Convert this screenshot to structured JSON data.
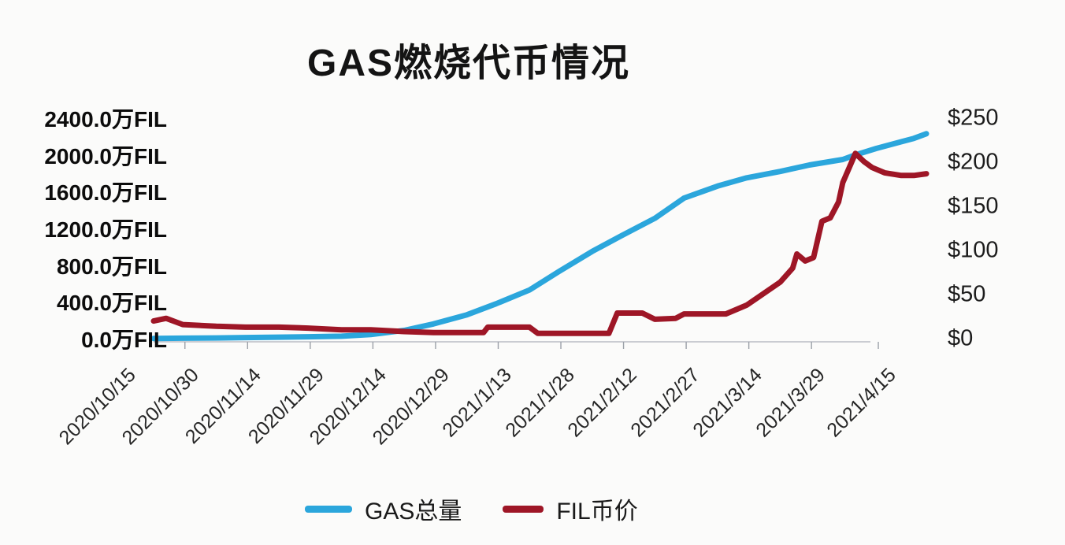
{
  "title": "GAS燃烧代币情况",
  "chart_data": {
    "type": "line",
    "title": "GAS燃烧代币情况",
    "grid": false,
    "legend_position": "bottom",
    "x_start": "2020/10/15",
    "x_end": "2021/4/18",
    "x_tick_labels": [
      "2020/10/15",
      "2020/10/30",
      "2020/11/14",
      "2020/11/29",
      "2020/12/14",
      "2020/12/29",
      "2021/1/13",
      "2021/1/28",
      "2021/2/12",
      "2021/2/27",
      "2021/3/14",
      "2021/3/29",
      "2021/4/15"
    ],
    "left_axis": {
      "unit": "万FIL",
      "min": 0,
      "max": 2400,
      "labels": [
        "2400.0万FIL",
        "2000.0万FIL",
        "1600.0万FIL",
        "1200.0万FIL",
        "800.0万FIL",
        "400.0万FIL",
        "0.0万FIL"
      ]
    },
    "right_axis": {
      "unit": "$",
      "min": 0,
      "max": 250,
      "labels": [
        "$250",
        "$200",
        "$150",
        "$100",
        "$50",
        "$0"
      ]
    },
    "series": [
      {
        "name": "GAS总量",
        "axis": "left",
        "unit": "万FIL",
        "color": "#2ba6dc",
        "points": [
          [
            "2020/10/15",
            2
          ],
          [
            "2020/10/22",
            5
          ],
          [
            "2020/10/30",
            8
          ],
          [
            "2020/11/6",
            12
          ],
          [
            "2020/11/14",
            16
          ],
          [
            "2020/11/21",
            21
          ],
          [
            "2020/11/29",
            27
          ],
          [
            "2020/12/6",
            45
          ],
          [
            "2020/12/14",
            90
          ],
          [
            "2020/12/21",
            160
          ],
          [
            "2020/12/29",
            260
          ],
          [
            "2021/1/5",
            380
          ],
          [
            "2021/1/13",
            530
          ],
          [
            "2021/1/20",
            730
          ],
          [
            "2021/1/28",
            950
          ],
          [
            "2021/2/4",
            1120
          ],
          [
            "2021/2/12",
            1310
          ],
          [
            "2021/2/19",
            1530
          ],
          [
            "2021/2/27",
            1660
          ],
          [
            "2021/3/6",
            1750
          ],
          [
            "2021/3/14",
            1820
          ],
          [
            "2021/3/21",
            1890
          ],
          [
            "2021/3/29",
            1950
          ],
          [
            "2021/4/1",
            2000
          ],
          [
            "2021/4/6",
            2070
          ],
          [
            "2021/4/15",
            2180
          ],
          [
            "2021/4/18",
            2230
          ]
        ]
      },
      {
        "name": "FIL币价",
        "axis": "right",
        "unit": "$",
        "color": "#9e1626",
        "points": [
          [
            "2020/10/15",
            20
          ],
          [
            "2020/10/18",
            23
          ],
          [
            "2020/10/22",
            16
          ],
          [
            "2020/10/30",
            14
          ],
          [
            "2020/11/6",
            13
          ],
          [
            "2020/11/14",
            13
          ],
          [
            "2020/11/21",
            12
          ],
          [
            "2020/11/29",
            10
          ],
          [
            "2020/12/6",
            10
          ],
          [
            "2020/12/14",
            8
          ],
          [
            "2020/12/21",
            7
          ],
          [
            "2020/12/29",
            7
          ],
          [
            "2021/1/2",
            7
          ],
          [
            "2021/1/3",
            13
          ],
          [
            "2021/1/13",
            13
          ],
          [
            "2021/1/15",
            6
          ],
          [
            "2021/1/28",
            6
          ],
          [
            "2021/2/1",
            6
          ],
          [
            "2021/2/3",
            29
          ],
          [
            "2021/2/9",
            29
          ],
          [
            "2021/2/12",
            22
          ],
          [
            "2021/2/17",
            23
          ],
          [
            "2021/2/19",
            28
          ],
          [
            "2021/3/1",
            28
          ],
          [
            "2021/3/6",
            38
          ],
          [
            "2021/3/14",
            64
          ],
          [
            "2021/3/17",
            80
          ],
          [
            "2021/3/18",
            96
          ],
          [
            "2021/3/20",
            88
          ],
          [
            "2021/3/22",
            92
          ],
          [
            "2021/3/24",
            133
          ],
          [
            "2021/3/26",
            137
          ],
          [
            "2021/3/28",
            155
          ],
          [
            "2021/3/29",
            177
          ],
          [
            "2021/4/1",
            210
          ],
          [
            "2021/4/3",
            201
          ],
          [
            "2021/4/5",
            194
          ],
          [
            "2021/4/8",
            188
          ],
          [
            "2021/4/12",
            185
          ],
          [
            "2021/4/15",
            185
          ],
          [
            "2021/4/18",
            187
          ]
        ]
      }
    ]
  },
  "legend": {
    "gas_label": "GAS总量",
    "fil_label": "FIL币价"
  }
}
